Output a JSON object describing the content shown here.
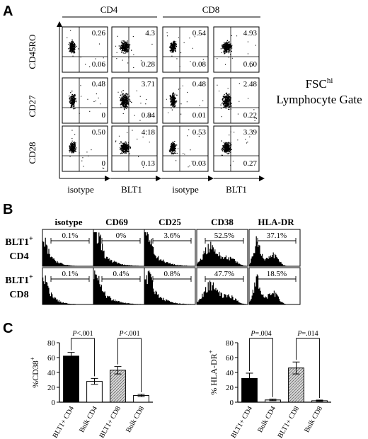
{
  "panels": {
    "a": "A",
    "b": "B",
    "c": "C"
  },
  "panel_a": {
    "groups": [
      "CD4",
      "CD8"
    ],
    "rows": [
      "CD45RO",
      "CD27",
      "CD28"
    ],
    "cols": [
      "isotype",
      "BLT1",
      "isotype",
      "BLT1"
    ],
    "gate": {
      "prefix": "FSC",
      "sup": "hi",
      "line2": "Lymphocyte Gate"
    },
    "values": [
      [
        [
          "0.26",
          "0.06"
        ],
        [
          "4.3",
          "0.28"
        ],
        [
          "0.54",
          "0.08"
        ],
        [
          "4.93",
          "0.60"
        ]
      ],
      [
        [
          "0.48",
          "0"
        ],
        [
          "3.71",
          "0.84"
        ],
        [
          "0.48",
          "0.01"
        ],
        [
          "2.48",
          "0.22"
        ]
      ],
      [
        [
          "0.50",
          "0"
        ],
        [
          "4.18",
          "0.13"
        ],
        [
          "0.53",
          "0.03"
        ],
        [
          "3.39",
          "0.27"
        ]
      ]
    ]
  },
  "panel_b": {
    "cols": [
      "isotype",
      "CD69",
      "CD25",
      "CD38",
      "HLA-DR"
    ],
    "rows": [
      {
        "top": "BLT1",
        "sup": "+",
        "bottom": "CD4"
      },
      {
        "top": "BLT1",
        "sup": "+",
        "bottom": "CD8"
      }
    ],
    "percent": [
      [
        "0.1%",
        "0%",
        "3.6%",
        "52.5%",
        "37.1%"
      ],
      [
        "0.1%",
        "0.4%",
        "0.8%",
        "47.7%",
        "18.5%"
      ]
    ]
  },
  "chart_data": [
    {
      "type": "bar",
      "categories": [
        "BLT1+ CD4",
        "Bulk CD4",
        "BLT1+ CD8",
        "Bulk CD8"
      ],
      "values": [
        62,
        28,
        43,
        9
      ],
      "errors": [
        5,
        4,
        5,
        1.5
      ],
      "ylabel": "%CD38",
      "ylabel_sup": "+",
      "ylim": [
        0,
        80
      ],
      "yticks": [
        "0",
        "20",
        "40",
        "60",
        "80"
      ],
      "pvalues": [
        {
          "text": "P<.001",
          "pair": [
            0,
            1
          ]
        },
        {
          "text": "P<.001",
          "pair": [
            2,
            3
          ]
        }
      ],
      "colors": [
        "#000000",
        "#ffffff",
        "#c0c0c0",
        "#ffffff"
      ]
    },
    {
      "type": "bar",
      "categories": [
        "BLT1+ CD4",
        "Bulk CD4",
        "BLT1+ CD8",
        "Bulk CD8"
      ],
      "values": [
        32,
        3,
        46,
        2
      ],
      "errors": [
        7,
        1,
        8,
        0.8
      ],
      "ylabel": "% HLA-DR",
      "ylabel_sup": "+",
      "ylim": [
        0,
        80
      ],
      "yticks": [
        "0",
        "20",
        "40",
        "60",
        "80"
      ],
      "pvalues": [
        {
          "text": "P=.004",
          "pair": [
            0,
            1
          ]
        },
        {
          "text": "P=.014",
          "pair": [
            2,
            3
          ]
        }
      ],
      "colors": [
        "#000000",
        "#ffffff",
        "#c0c0c0",
        "#ffffff"
      ]
    }
  ]
}
